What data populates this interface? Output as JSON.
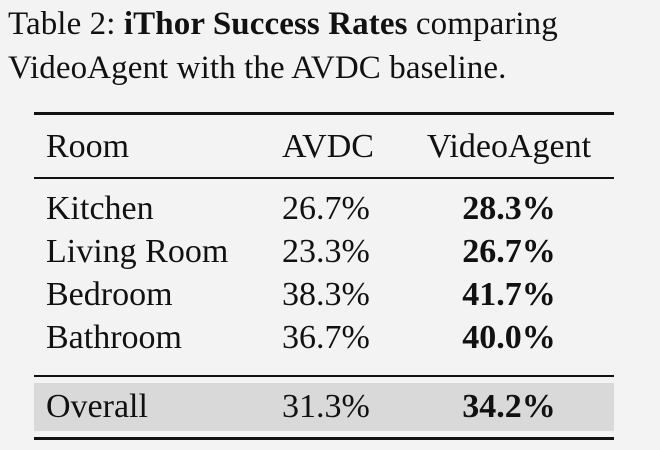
{
  "caption": {
    "prefix": "Table 2: ",
    "bold_title": "iThor Success Rates",
    "suffix": " comparing VideoAgent with the AVDC baseline."
  },
  "table": {
    "headers": [
      "Room",
      "AVDC",
      "VideoAgent"
    ],
    "rows": [
      {
        "room": "Kitchen",
        "avdc": "26.7%",
        "videoagent": "28.3%"
      },
      {
        "room": "Living Room",
        "avdc": "23.3%",
        "videoagent": "26.7%"
      },
      {
        "room": "Bedroom",
        "avdc": "38.3%",
        "videoagent": "41.7%"
      },
      {
        "room": "Bathroom",
        "avdc": "36.7%",
        "videoagent": "40.0%"
      }
    ],
    "overall": {
      "room": "Overall",
      "avdc": "31.3%",
      "videoagent": "34.2%"
    },
    "overall_highlight_color": "#d9d9d9"
  }
}
